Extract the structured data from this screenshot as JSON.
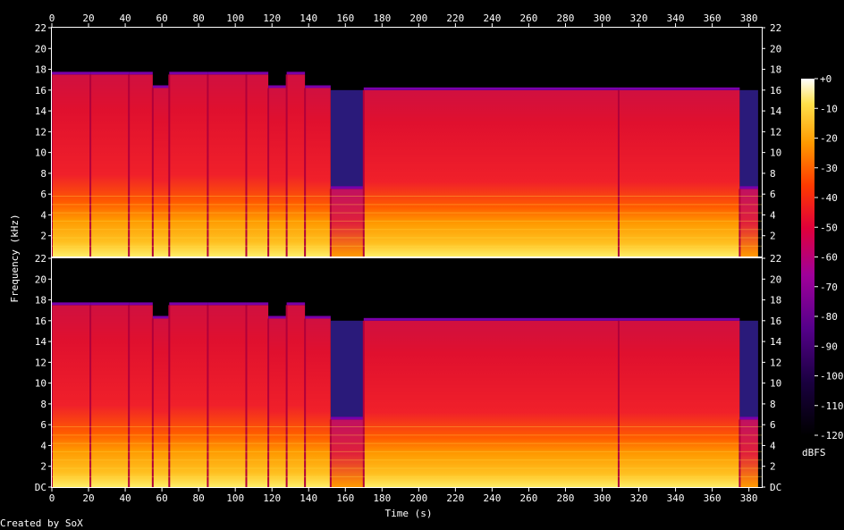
{
  "chart_data": {
    "type": "heatmap",
    "title": "",
    "xlabel": "Time (s)",
    "ylabel": "Frequency (kHz)",
    "x_ticks": [
      0,
      20,
      40,
      60,
      80,
      100,
      120,
      140,
      160,
      180,
      200,
      220,
      240,
      260,
      280,
      300,
      320,
      340,
      360,
      380
    ],
    "xlim": [
      0,
      387
    ],
    "channels": [
      {
        "channel": 1,
        "y_ticks": [
          "2",
          "4",
          "6",
          "8",
          "10",
          "12",
          "14",
          "16",
          "18",
          "20",
          "22"
        ],
        "ylim": [
          0,
          22
        ]
      },
      {
        "channel": 2,
        "y_ticks": [
          "DC",
          "2",
          "4",
          "6",
          "8",
          "10",
          "12",
          "14",
          "16",
          "18",
          "20",
          "22"
        ],
        "ylim": [
          0,
          22
        ]
      }
    ],
    "colorbar": {
      "label": "dBFS",
      "ticks": [
        "+0",
        "-10",
        "-20",
        "-30",
        "-40",
        "-50",
        "-60",
        "-70",
        "-80",
        "-90",
        "-100",
        "-110",
        "-120"
      ],
      "range": [
        -120,
        0
      ]
    },
    "segments": [
      {
        "start": 0,
        "end": 21,
        "cutoff_khz": 17.5
      },
      {
        "start": 21,
        "end": 42,
        "cutoff_khz": 17.5
      },
      {
        "start": 42,
        "end": 55,
        "cutoff_khz": 17.5
      },
      {
        "start": 55,
        "end": 64,
        "cutoff_khz": 16.2
      },
      {
        "start": 64,
        "end": 85,
        "cutoff_khz": 17.5
      },
      {
        "start": 85,
        "end": 106,
        "cutoff_khz": 17.5
      },
      {
        "start": 106,
        "end": 118,
        "cutoff_khz": 17.5
      },
      {
        "start": 118,
        "end": 128,
        "cutoff_khz": 16.2
      },
      {
        "start": 128,
        "end": 138,
        "cutoff_khz": 17.5
      },
      {
        "start": 138,
        "end": 152,
        "cutoff_khz": 16.2
      },
      {
        "start": 152,
        "end": 170,
        "cutoff_khz": 6.5,
        "quiet": true
      },
      {
        "start": 170,
        "end": 309,
        "cutoff_khz": 16.0
      },
      {
        "start": 309,
        "end": 375,
        "cutoff_khz": 16.0
      },
      {
        "start": 375,
        "end": 385,
        "cutoff_khz": 6.5,
        "quiet": true
      }
    ],
    "colors": {
      "background": "#000000",
      "text": "#ffffff"
    }
  },
  "footer": {
    "credit": "Created by SoX"
  }
}
